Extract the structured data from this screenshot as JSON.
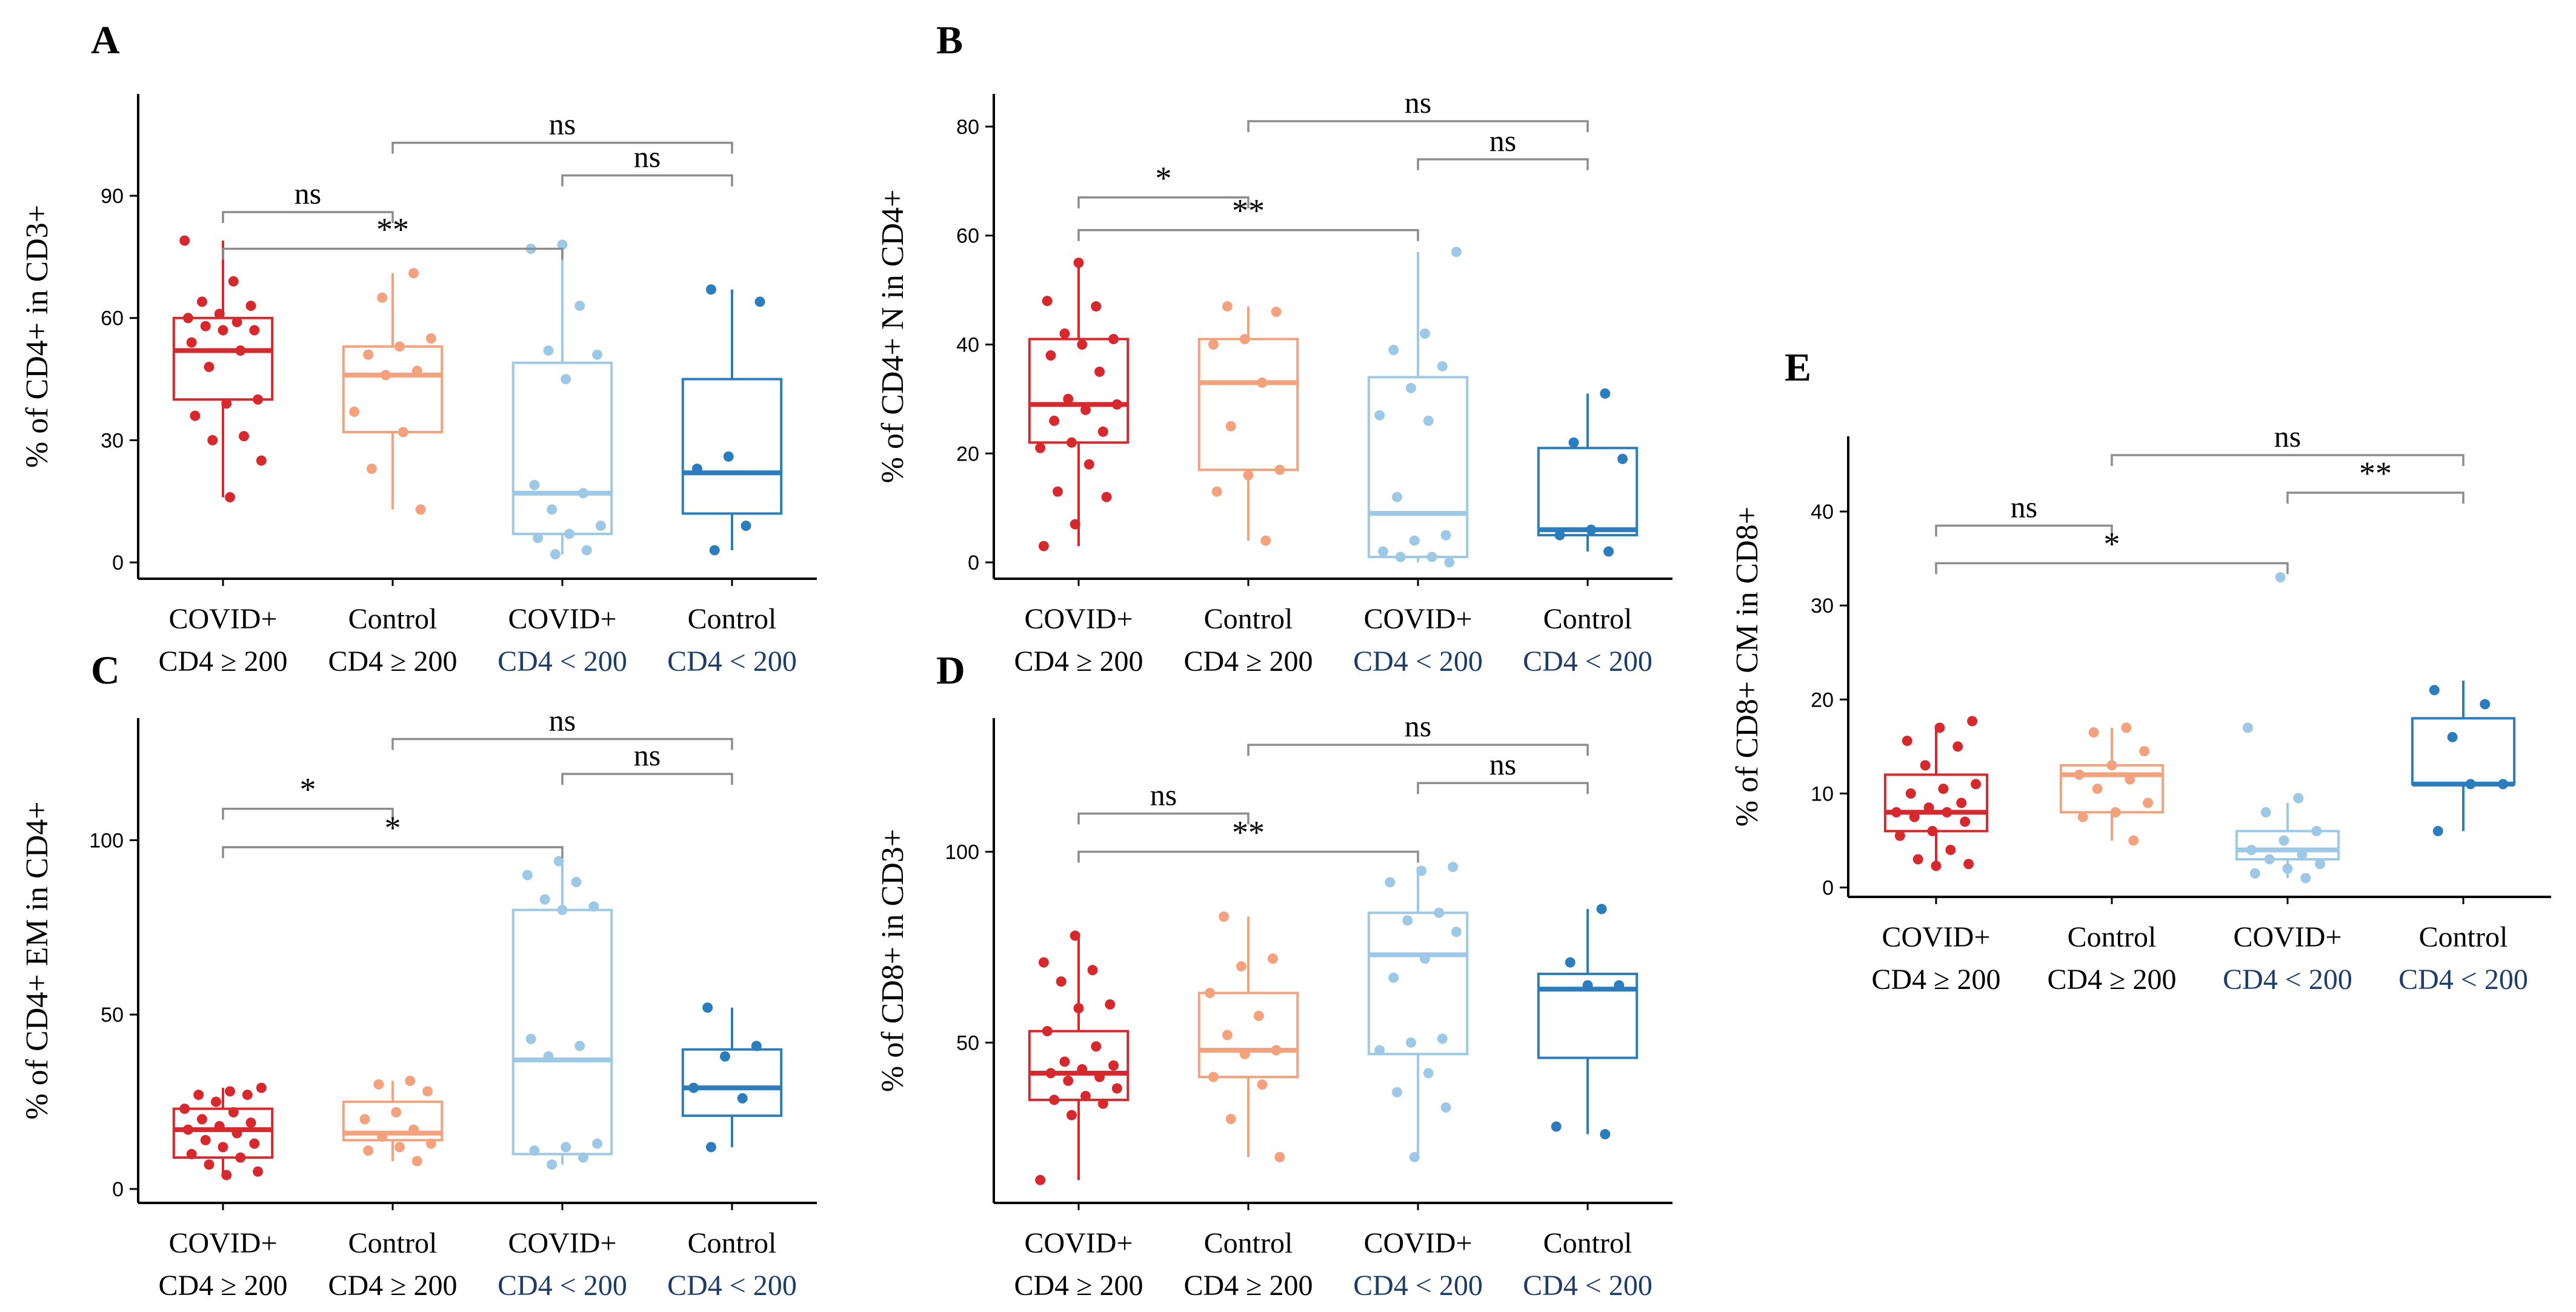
{
  "figure": {
    "panel_count": 5
  },
  "colors": {
    "covid_hi": "#d6282d",
    "control_hi": "#f4a27e",
    "covid_lo": "#9ec9e6",
    "control_lo": "#2b7dbd",
    "bracket": "#8c8c8c",
    "axis": "#000000"
  },
  "chart_data": [
    {
      "panel": "A",
      "type": "box",
      "ylabel": "% of CD4+ in CD3+",
      "ylim": [
        -4,
        115
      ],
      "yticks": [
        0,
        30,
        60,
        90
      ],
      "categories": [
        {
          "line1": "COVID+",
          "line2": "CD4 ≥ 200"
        },
        {
          "line1": "Control",
          "line2": "CD4 ≥ 200"
        },
        {
          "line1": "COVID+",
          "line2": "CD4 < 200"
        },
        {
          "line1": "Control",
          "line2": "CD4 < 200"
        }
      ],
      "boxes": [
        {
          "q1": 40,
          "median": 52,
          "q3": 60,
          "lo": 16,
          "hi": 79,
          "points": [
            79,
            69,
            64,
            63,
            61,
            60,
            59,
            58,
            57,
            57,
            54,
            52,
            48,
            40,
            39,
            36,
            31,
            30,
            25,
            16
          ]
        },
        {
          "q1": 32,
          "median": 46,
          "q3": 53,
          "lo": 13,
          "hi": 71,
          "points": [
            71,
            65,
            55,
            53,
            51,
            47,
            46,
            37,
            32,
            23,
            13
          ]
        },
        {
          "q1": 7,
          "median": 17,
          "q3": 49,
          "lo": 2,
          "hi": 78,
          "points": [
            78,
            77,
            63,
            52,
            51,
            45,
            19,
            17,
            13,
            9,
            7,
            6,
            3,
            2
          ]
        },
        {
          "q1": 12,
          "median": 22,
          "q3": 45,
          "lo": 3,
          "hi": 67,
          "points": [
            67,
            64,
            26,
            23,
            9,
            3
          ]
        }
      ],
      "comparisons": [
        {
          "from": 1,
          "to": 3,
          "label": "ns",
          "y": 103
        },
        {
          "from": 2,
          "to": 3,
          "label": "ns",
          "y": 95
        },
        {
          "from": 0,
          "to": 1,
          "label": "ns",
          "y": 86
        },
        {
          "from": 0,
          "to": 2,
          "label": "**",
          "y": 77
        }
      ]
    },
    {
      "panel": "B",
      "type": "box",
      "ylabel": "% of CD4+ N in CD4+",
      "ylim": [
        -3,
        86
      ],
      "yticks": [
        0,
        20,
        40,
        60,
        80
      ],
      "categories": [
        {
          "line1": "COVID+",
          "line2": "CD4 ≥ 200"
        },
        {
          "line1": "Control",
          "line2": "CD4 ≥ 200"
        },
        {
          "line1": "COVID+",
          "line2": "CD4 < 200"
        },
        {
          "line1": "Control",
          "line2": "CD4 < 200"
        }
      ],
      "boxes": [
        {
          "q1": 22,
          "median": 29,
          "q3": 41,
          "lo": 3,
          "hi": 55,
          "points": [
            55,
            48,
            47,
            42,
            41,
            40,
            38,
            35,
            30,
            29,
            28,
            26,
            24,
            22,
            21,
            18,
            13,
            12,
            7,
            3
          ]
        },
        {
          "q1": 17,
          "median": 33,
          "q3": 41,
          "lo": 4,
          "hi": 47,
          "points": [
            47,
            46,
            41,
            40,
            33,
            25,
            17,
            16,
            13,
            4
          ]
        },
        {
          "q1": 1,
          "median": 9,
          "q3": 34,
          "lo": 0,
          "hi": 57,
          "points": [
            57,
            42,
            39,
            36,
            32,
            27,
            26,
            12,
            5,
            4,
            2,
            1,
            1,
            0
          ]
        },
        {
          "q1": 5,
          "median": 6,
          "q3": 21,
          "lo": 2,
          "hi": 31,
          "points": [
            31,
            22,
            19,
            6,
            5,
            2
          ]
        }
      ],
      "comparisons": [
        {
          "from": 1,
          "to": 3,
          "label": "ns",
          "y": 81
        },
        {
          "from": 2,
          "to": 3,
          "label": "ns",
          "y": 74
        },
        {
          "from": 0,
          "to": 1,
          "label": "*",
          "y": 67
        },
        {
          "from": 0,
          "to": 2,
          "label": "**",
          "y": 61
        }
      ]
    },
    {
      "panel": "C",
      "type": "box",
      "ylabel": "% of CD4+ EM in CD4+",
      "ylim": [
        -4,
        135
      ],
      "yticks": [
        0,
        50,
        100
      ],
      "categories": [
        {
          "line1": "COVID+",
          "line2": "CD4 ≥ 200"
        },
        {
          "line1": "Control",
          "line2": "CD4 ≥ 200"
        },
        {
          "line1": "COVID+",
          "line2": "CD4 < 200"
        },
        {
          "line1": "Control",
          "line2": "CD4 < 200"
        }
      ],
      "boxes": [
        {
          "q1": 9,
          "median": 17,
          "q3": 23,
          "lo": 4,
          "hi": 29,
          "points": [
            29,
            28,
            27,
            27,
            25,
            23,
            22,
            20,
            19,
            18,
            17,
            16,
            14,
            13,
            12,
            10,
            9,
            7,
            5,
            4
          ]
        },
        {
          "q1": 14,
          "median": 16,
          "q3": 25,
          "lo": 8,
          "hi": 31,
          "points": [
            31,
            30,
            28,
            22,
            20,
            17,
            15,
            13,
            12,
            11,
            8
          ]
        },
        {
          "q1": 10,
          "median": 37,
          "q3": 80,
          "lo": 7,
          "hi": 94,
          "points": [
            94,
            90,
            88,
            83,
            81,
            80,
            43,
            41,
            38,
            13,
            12,
            11,
            9,
            7
          ]
        },
        {
          "q1": 21,
          "median": 29,
          "q3": 40,
          "lo": 12,
          "hi": 52,
          "points": [
            52,
            41,
            38,
            29,
            26,
            12
          ]
        }
      ],
      "comparisons": [
        {
          "from": 1,
          "to": 3,
          "label": "ns",
          "y": 129
        },
        {
          "from": 2,
          "to": 3,
          "label": "ns",
          "y": 119
        },
        {
          "from": 0,
          "to": 1,
          "label": "*",
          "y": 109
        },
        {
          "from": 0,
          "to": 2,
          "label": "*",
          "y": 98
        }
      ]
    },
    {
      "panel": "D",
      "type": "box",
      "ylabel": "% of CD8+ in CD3+",
      "ylim": [
        8,
        135
      ],
      "yticks": [
        50,
        100
      ],
      "categories": [
        {
          "line1": "COVID+",
          "line2": "CD4 ≥ 200"
        },
        {
          "line1": "Control",
          "line2": "CD4 ≥ 200"
        },
        {
          "line1": "COVID+",
          "line2": "CD4 < 200"
        },
        {
          "line1": "Control",
          "line2": "CD4 < 200"
        }
      ],
      "boxes": [
        {
          "q1": 35,
          "median": 42,
          "q3": 53,
          "lo": 14,
          "hi": 78,
          "points": [
            78,
            71,
            69,
            66,
            60,
            59,
            53,
            49,
            45,
            44,
            43,
            42,
            41,
            40,
            38,
            36,
            35,
            34,
            31,
            14
          ]
        },
        {
          "q1": 41,
          "median": 48,
          "q3": 63,
          "lo": 20,
          "hi": 83,
          "points": [
            83,
            72,
            70,
            63,
            57,
            52,
            48,
            47,
            41,
            39,
            30,
            20
          ]
        },
        {
          "q1": 47,
          "median": 73,
          "q3": 84,
          "lo": 20,
          "hi": 96,
          "points": [
            96,
            95,
            92,
            84,
            82,
            79,
            72,
            67,
            51,
            50,
            48,
            42,
            37,
            33,
            20
          ]
        },
        {
          "q1": 46,
          "median": 64,
          "q3": 68,
          "lo": 26,
          "hi": 85,
          "points": [
            85,
            71,
            65,
            65,
            28,
            26
          ]
        }
      ],
      "comparisons": [
        {
          "from": 1,
          "to": 3,
          "label": "ns",
          "y": 128
        },
        {
          "from": 2,
          "to": 3,
          "label": "ns",
          "y": 118
        },
        {
          "from": 0,
          "to": 1,
          "label": "ns",
          "y": 110
        },
        {
          "from": 0,
          "to": 2,
          "label": "**",
          "y": 100
        }
      ]
    },
    {
      "panel": "E",
      "type": "box",
      "ylabel": "% of CD8+ CM in CD8+",
      "ylim": [
        -1,
        48
      ],
      "yticks": [
        0,
        10,
        20,
        30,
        40
      ],
      "categories": [
        {
          "line1": "COVID+",
          "line2": "CD4 ≥ 200"
        },
        {
          "line1": "Control",
          "line2": "CD4 ≥ 200"
        },
        {
          "line1": "COVID+",
          "line2": "CD4 < 200"
        },
        {
          "line1": "Control",
          "line2": "CD4 < 200"
        }
      ],
      "boxes": [
        {
          "q1": 6,
          "median": 8,
          "q3": 12,
          "lo": 2,
          "hi": 17,
          "points": [
            17.7,
            17,
            15.6,
            15,
            13,
            11,
            10.5,
            10,
            9,
            8.5,
            8,
            8,
            7.5,
            7,
            6,
            5.5,
            4,
            3,
            2.5,
            2.3
          ]
        },
        {
          "q1": 8,
          "median": 12,
          "q3": 13,
          "lo": 5,
          "hi": 17,
          "points": [
            17,
            16.5,
            14.5,
            13,
            12,
            11.5,
            10.5,
            9,
            8,
            7.5,
            5
          ]
        },
        {
          "q1": 3,
          "median": 4,
          "q3": 6,
          "lo": 1,
          "hi": 9,
          "points": [
            33,
            17,
            9.5,
            8,
            6,
            5,
            4,
            3.5,
            3,
            2.5,
            2,
            1.5,
            1
          ]
        },
        {
          "q1": 11,
          "median": 11,
          "q3": 18,
          "lo": 6,
          "hi": 22,
          "points": [
            21,
            19.5,
            16,
            11,
            11,
            6
          ]
        }
      ],
      "comparisons": [
        {
          "from": 1,
          "to": 3,
          "label": "ns",
          "y": 46
        },
        {
          "from": 2,
          "to": 3,
          "label": "**",
          "y": 42
        },
        {
          "from": 0,
          "to": 1,
          "label": "ns",
          "y": 38.5
        },
        {
          "from": 0,
          "to": 2,
          "label": "*",
          "y": 34.5
        }
      ]
    }
  ]
}
